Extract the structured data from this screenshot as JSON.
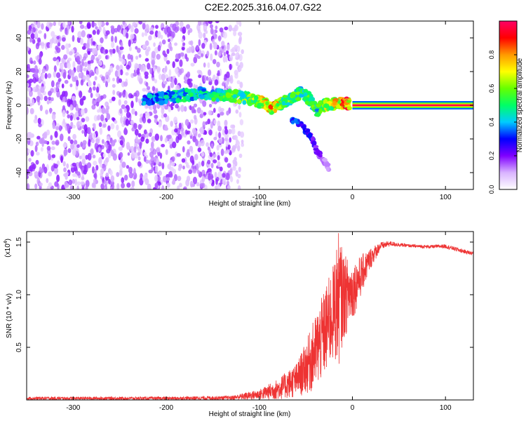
{
  "title": "C2E2.2025.316.04.07.G22",
  "chart_data": [
    {
      "type": "heatmap",
      "xlabel": "Height of straight line (km)",
      "ylabel": "Frequency (Hz)",
      "xlim": [
        -350,
        130
      ],
      "ylim": [
        -50,
        50
      ],
      "x_ticks": [
        -300,
        -200,
        -100,
        0,
        100
      ],
      "y_ticks": [
        -40,
        -20,
        0,
        20,
        40
      ],
      "colorbar": {
        "label": "Normalized spectral amplitude",
        "range": [
          0,
          1
        ],
        "ticks": [
          "0.0",
          "0.2",
          "0.4",
          "0.6",
          "0.8"
        ],
        "colors": [
          "#ffffff",
          "#d9b3ff",
          "#7f00ff",
          "#0000ff",
          "#00ccff",
          "#00ff66",
          "#66ff00",
          "#ffff00",
          "#ff9900",
          "#ff0000",
          "#ff0066"
        ]
      },
      "noise_region": {
        "x_range": [
          -350,
          -130
        ],
        "f_range": [
          -50,
          50
        ],
        "typical_amplitude": 0.12,
        "fade_edge": -118
      },
      "ridge_points": [
        {
          "x": -225,
          "f": 3,
          "a": 0.35
        },
        {
          "x": -210,
          "f": 4,
          "a": 0.4
        },
        {
          "x": -195,
          "f": 5,
          "a": 0.42
        },
        {
          "x": -180,
          "f": 6,
          "a": 0.45
        },
        {
          "x": -165,
          "f": 7,
          "a": 0.46
        },
        {
          "x": -150,
          "f": 6,
          "a": 0.48
        },
        {
          "x": -135,
          "f": 6,
          "a": 0.52
        },
        {
          "x": -120,
          "f": 5,
          "a": 0.55
        },
        {
          "x": -105,
          "f": 3,
          "a": 0.6
        },
        {
          "x": -95,
          "f": 1,
          "a": 0.7
        },
        {
          "x": -85,
          "f": -2,
          "a": 0.75
        },
        {
          "x": -75,
          "f": 2,
          "a": 0.6
        },
        {
          "x": -65,
          "f": 4,
          "a": 0.55
        },
        {
          "x": -55,
          "f": 8,
          "a": 0.5
        },
        {
          "x": -45,
          "f": 3,
          "a": 0.55
        },
        {
          "x": -38,
          "f": -3,
          "a": 0.5
        },
        {
          "x": -30,
          "f": 0,
          "a": 0.6
        },
        {
          "x": -20,
          "f": 1,
          "a": 0.7
        },
        {
          "x": -10,
          "f": 1,
          "a": 0.8
        },
        {
          "x": -3,
          "f": 1,
          "a": 0.85
        }
      ],
      "branch_points": [
        {
          "x": -65,
          "f": -8,
          "a": 0.35
        },
        {
          "x": -55,
          "f": -12,
          "a": 0.3
        },
        {
          "x": -48,
          "f": -16,
          "a": 0.28
        },
        {
          "x": -42,
          "f": -22,
          "a": 0.25
        },
        {
          "x": -38,
          "f": -28,
          "a": 0.2
        },
        {
          "x": -30,
          "f": -33,
          "a": 0.15
        },
        {
          "x": -25,
          "f": -38,
          "a": 0.1
        }
      ],
      "steady_band": {
        "x_range": [
          0,
          130
        ],
        "f": 0,
        "a": 0.98
      }
    },
    {
      "type": "line",
      "xlabel": "Height of straight line (km)",
      "ylabel": "SNR (10 * v/v)",
      "y_multiplier_label": "(x10",
      "y_multiplier_exponent": "4",
      "y_multiplier_close": ")",
      "xlim": [
        -350,
        130
      ],
      "ylim": [
        0,
        1.6
      ],
      "x_ticks": [
        -300,
        -200,
        -100,
        0,
        100
      ],
      "y_ticks": [
        "0.5",
        "1.0",
        "1.5"
      ],
      "y_tick_values": [
        0.5,
        1.0,
        1.5
      ],
      "color": "#ee3333",
      "envelope": [
        {
          "x": -350,
          "lo": 0.0,
          "hi": 0.03
        },
        {
          "x": -200,
          "lo": 0.0,
          "hi": 0.03
        },
        {
          "x": -130,
          "lo": 0.0,
          "hi": 0.04
        },
        {
          "x": -100,
          "lo": 0.0,
          "hi": 0.1
        },
        {
          "x": -80,
          "lo": 0.0,
          "hi": 0.2
        },
        {
          "x": -60,
          "lo": 0.02,
          "hi": 0.35
        },
        {
          "x": -50,
          "lo": 0.05,
          "hi": 0.55
        },
        {
          "x": -40,
          "lo": 0.08,
          "hi": 0.8
        },
        {
          "x": -30,
          "lo": 0.2,
          "hi": 1.05
        },
        {
          "x": -20,
          "lo": 0.35,
          "hi": 1.3
        },
        {
          "x": -15,
          "lo": 0.3,
          "hi": 1.6
        },
        {
          "x": -10,
          "lo": 0.55,
          "hi": 1.4
        },
        {
          "x": 0,
          "lo": 0.75,
          "hi": 1.3
        },
        {
          "x": 10,
          "lo": 1.0,
          "hi": 1.38
        },
        {
          "x": 20,
          "lo": 1.25,
          "hi": 1.45
        },
        {
          "x": 30,
          "lo": 1.42,
          "hi": 1.5
        },
        {
          "x": 40,
          "lo": 1.46,
          "hi": 1.51
        },
        {
          "x": 60,
          "lo": 1.45,
          "hi": 1.48
        },
        {
          "x": 80,
          "lo": 1.44,
          "hi": 1.47
        },
        {
          "x": 100,
          "lo": 1.44,
          "hi": 1.48
        },
        {
          "x": 120,
          "lo": 1.39,
          "hi": 1.43
        },
        {
          "x": 130,
          "lo": 1.37,
          "hi": 1.41
        }
      ]
    }
  ]
}
